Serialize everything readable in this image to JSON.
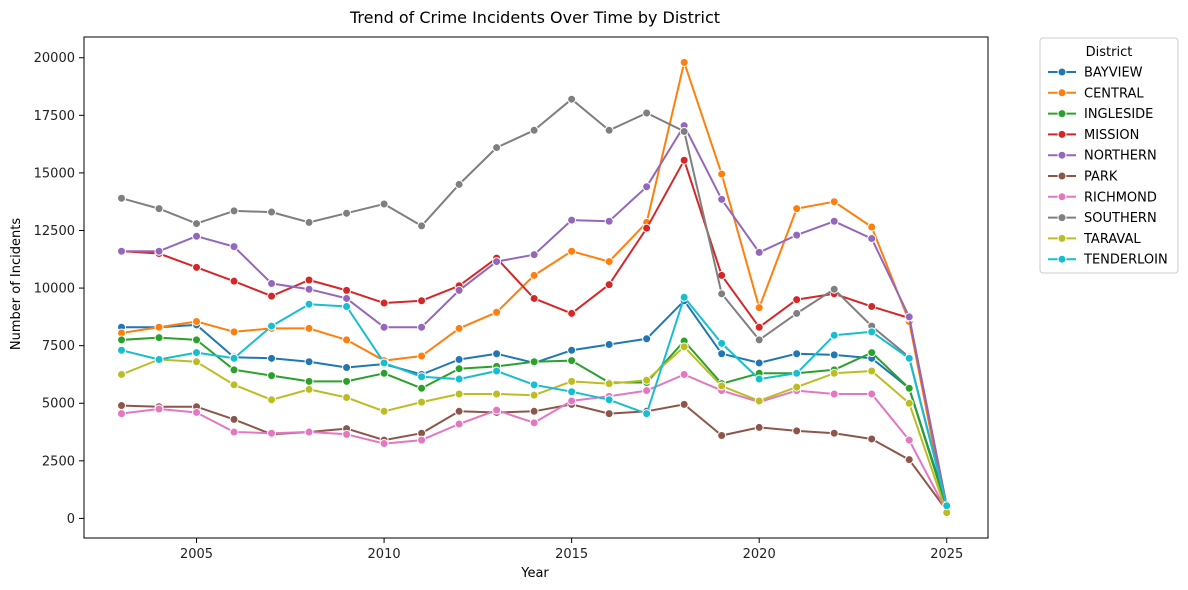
{
  "chart_data": {
    "type": "line",
    "title": "Trend of Crime Incidents Over Time by District",
    "xlabel": "Year",
    "ylabel": "Number of Incidents",
    "xlim": [
      2002.0,
      2026.1
    ],
    "ylim": [
      -850,
      20900
    ],
    "xticks": [
      2005,
      2010,
      2015,
      2020,
      2025
    ],
    "yticks": [
      0,
      2500,
      5000,
      7500,
      10000,
      12500,
      15000,
      17500,
      20000
    ],
    "x": [
      2003,
      2004,
      2005,
      2006,
      2007,
      2008,
      2009,
      2010,
      2011,
      2012,
      2013,
      2014,
      2015,
      2016,
      2017,
      2018,
      2019,
      2020,
      2021,
      2022,
      2023,
      2024,
      2025
    ],
    "legend": {
      "title": "District",
      "position": "outside-top-right"
    },
    "grid": false,
    "series": [
      {
        "name": "BAYVIEW",
        "color": "#1f77b4",
        "values": [
          8300,
          8300,
          8400,
          7000,
          6950,
          6800,
          6550,
          6700,
          6250,
          6900,
          7150,
          6750,
          7300,
          7550,
          7800,
          9450,
          7150,
          6750,
          7150,
          7100,
          6950,
          5650,
          600
        ]
      },
      {
        "name": "CENTRAL",
        "color": "#ff7f0e",
        "values": [
          8050,
          8300,
          8550,
          8100,
          8250,
          8250,
          7750,
          6850,
          7050,
          8250,
          8950,
          10550,
          11600,
          11150,
          12850,
          19800,
          14950,
          9150,
          13450,
          13750,
          12650,
          8550,
          200
        ]
      },
      {
        "name": "INGLESIDE",
        "color": "#2ca02c",
        "values": [
          7750,
          7850,
          7750,
          6450,
          6200,
          5950,
          5950,
          6300,
          5650,
          6500,
          6600,
          6800,
          6850,
          5900,
          5900,
          7700,
          5850,
          6300,
          6300,
          6450,
          7200,
          5650,
          450
        ]
      },
      {
        "name": "MISSION",
        "color": "#d62728",
        "values": [
          11600,
          11500,
          10900,
          10300,
          9650,
          10350,
          9900,
          9350,
          9450,
          10100,
          11300,
          9550,
          8900,
          10150,
          12600,
          15550,
          10550,
          8300,
          9500,
          9750,
          9200,
          8700,
          550
        ]
      },
      {
        "name": "NORTHERN",
        "color": "#9467bd",
        "values": [
          11600,
          11600,
          12250,
          11800,
          10200,
          9950,
          9550,
          8300,
          8300,
          9900,
          11150,
          11450,
          12950,
          12900,
          14400,
          17050,
          13850,
          11550,
          12300,
          12900,
          12150,
          8750,
          550
        ]
      },
      {
        "name": "PARK",
        "color": "#8c564b",
        "values": [
          4900,
          4850,
          4850,
          4300,
          3650,
          3750,
          3900,
          3400,
          3700,
          4650,
          4600,
          4650,
          4950,
          4550,
          4650,
          4950,
          3600,
          3950,
          3800,
          3700,
          3450,
          2550,
          350
        ]
      },
      {
        "name": "RICHMOND",
        "color": "#e377c2",
        "values": [
          4550,
          4750,
          4600,
          3750,
          3700,
          3750,
          3650,
          3250,
          3400,
          4100,
          4700,
          4150,
          5100,
          5300,
          5550,
          6250,
          5550,
          5050,
          5550,
          5400,
          5400,
          3400,
          300
        ]
      },
      {
        "name": "SOUTHERN",
        "color": "#7f7f7f",
        "values": [
          13900,
          13450,
          12800,
          13350,
          13300,
          12850,
          13250,
          13650,
          12700,
          14500,
          16100,
          16850,
          18200,
          16850,
          17600,
          16800,
          9750,
          7750,
          8900,
          9950,
          8350,
          7000,
          600
        ]
      },
      {
        "name": "TARAVAL",
        "color": "#bcbd22",
        "values": [
          6250,
          6900,
          6800,
          5800,
          5150,
          5600,
          5250,
          4650,
          5050,
          5400,
          5400,
          5350,
          5950,
          5850,
          6000,
          7450,
          5750,
          5100,
          5700,
          6300,
          6400,
          5000,
          250
        ]
      },
      {
        "name": "TENDERLOIN",
        "color": "#17becf",
        "values": [
          7300,
          6900,
          7200,
          6950,
          8350,
          9300,
          9200,
          6750,
          6150,
          6050,
          6400,
          5800,
          5500,
          5150,
          4550,
          9600,
          7600,
          6050,
          6300,
          7950,
          8100,
          6950,
          550
        ]
      }
    ]
  }
}
